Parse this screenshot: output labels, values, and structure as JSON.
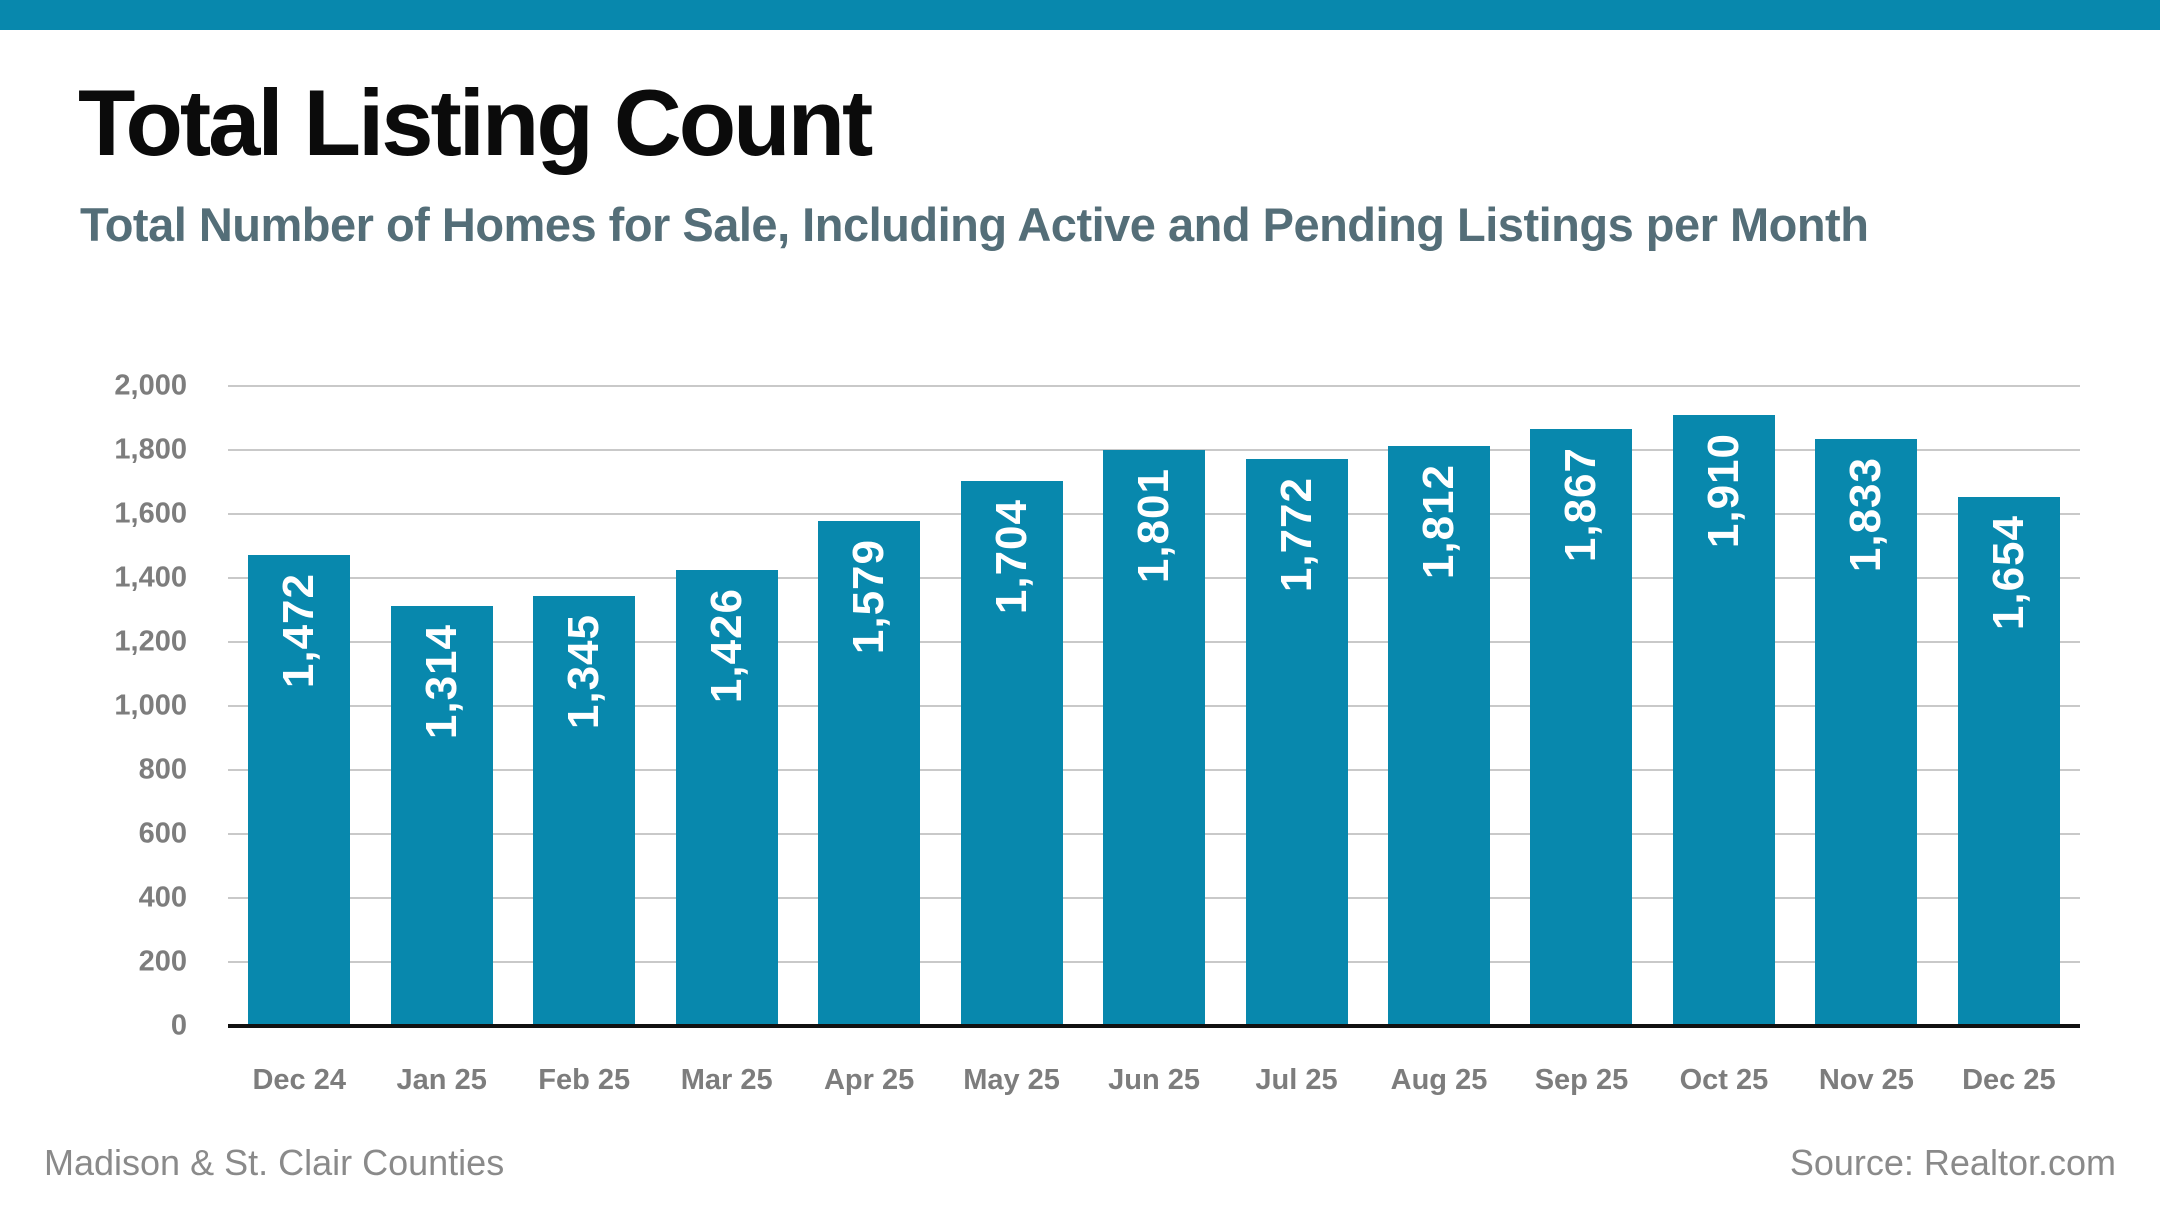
{
  "theme": {
    "accent": "#0888ad",
    "title_color": "#0b0b0b",
    "subtitle_color": "#546e78",
    "axis_label_color": "#7d7d7d",
    "gridline_color": "#c9c9c9",
    "axis_line_color": "#111111",
    "bar_value_color": "#ffffff",
    "footer_color": "#8a8a8a",
    "background": "#ffffff"
  },
  "header": {
    "title": "Total Listing Count",
    "subtitle": "Total Number of Homes for Sale, Including Active and Pending Listings per Month"
  },
  "chart_data": {
    "type": "bar",
    "title": "Total Listing Count",
    "subtitle": "Total Number of Homes for Sale, Including Active and Pending Listings per Month",
    "categories": [
      "Dec 24",
      "Jan 25",
      "Feb 25",
      "Mar 25",
      "Apr 25",
      "May 25",
      "Jun 25",
      "Jul 25",
      "Aug 25",
      "Sep 25",
      "Oct 25",
      "Nov 25",
      "Dec 25"
    ],
    "values": [
      1472,
      1314,
      1345,
      1426,
      1579,
      1704,
      1801,
      1772,
      1812,
      1867,
      1910,
      1833,
      1654
    ],
    "value_labels": [
      "1,472",
      "1,314",
      "1,345",
      "1,426",
      "1,579",
      "1,704",
      "1,801",
      "1,772",
      "1,812",
      "1,867",
      "1,910",
      "1,833",
      "1,654"
    ],
    "xlabel": "",
    "ylabel": "",
    "ylim": [
      0,
      2000
    ],
    "yticks": [
      0,
      200,
      400,
      600,
      800,
      1000,
      1200,
      1400,
      1600,
      1800,
      2000
    ],
    "ytick_labels": [
      "0",
      "200",
      "400",
      "600",
      "800",
      "1,000",
      "1,200",
      "1,400",
      "1,600",
      "1,800",
      "2,000"
    ],
    "grid": true,
    "legend": false,
    "bar_color": "#0888ad",
    "value_label_rotation": "vertical-bottom-to-top"
  },
  "footer": {
    "left": "Madison & St. Clair Counties",
    "right": "Source: Realtor.com"
  }
}
